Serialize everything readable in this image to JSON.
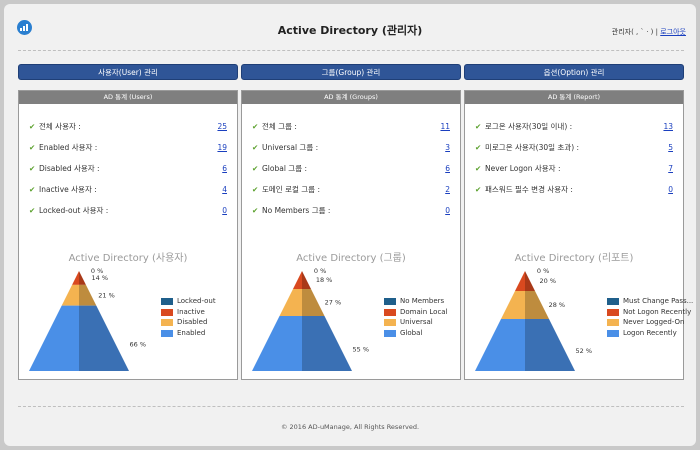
{
  "header": {
    "title": "Active Directory (관리자)",
    "user_label": "관리자(",
    "user_name": " , ` · )",
    "separator": " | ",
    "logout_label": "로그아웃"
  },
  "columns": [
    {
      "button_label": "사용자(User) 관리",
      "panel_title": "AD 통계 (Users)",
      "stats": [
        {
          "label": "전체 사용자 :",
          "value": "25"
        },
        {
          "label": "Enabled 사용자 :",
          "value": "19"
        },
        {
          "label": "Disabled 사용자 :",
          "value": "6"
        },
        {
          "label": "Inactive 사용자 :",
          "value": "4"
        },
        {
          "label": "Locked-out 사용자 :",
          "value": "0"
        }
      ],
      "chart_title": "Active Directory (사용자)"
    },
    {
      "button_label": "그룹(Group) 관리",
      "panel_title": "AD 통계 (Groups)",
      "stats": [
        {
          "label": "전체 그룹 :",
          "value": "11"
        },
        {
          "label": "Universal 그룹 :",
          "value": "3"
        },
        {
          "label": "Global 그룹 :",
          "value": "6"
        },
        {
          "label": "도메인 로컬 그룹 :",
          "value": "2"
        },
        {
          "label": "No Members 그룹 :",
          "value": "0"
        }
      ],
      "chart_title": "Active Directory (그룹)"
    },
    {
      "button_label": "옵션(Option) 관리",
      "panel_title": "AD 통계 (Report)",
      "stats": [
        {
          "label": "로그온 사용자(30일 이내) :",
          "value": "13"
        },
        {
          "label": "미로그온 사용자(30일 초과) :",
          "value": "5"
        },
        {
          "label": "Never Logon 사용자 :",
          "value": "7"
        },
        {
          "label": "패스워드 필수 변경 사용자 :",
          "value": "0"
        }
      ],
      "chart_title": "Active Directory (리포트)"
    }
  ],
  "chart_data": [
    {
      "type": "pyramid",
      "title": "Active Directory (사용자)",
      "series": [
        {
          "name": "Locked-out",
          "value": 0,
          "label": "0 %",
          "color": "#1f5f8b"
        },
        {
          "name": "Inactive",
          "value": 14,
          "label": "14 %",
          "color": "#d9491f"
        },
        {
          "name": "Disabled",
          "value": 21,
          "label": "21 %",
          "color": "#f4b350"
        },
        {
          "name": "Enabled",
          "value": 66,
          "label": "66 %",
          "color": "#4a8fe7"
        }
      ]
    },
    {
      "type": "pyramid",
      "title": "Active Directory (그룹)",
      "series": [
        {
          "name": "No Members",
          "value": 0,
          "label": "0 %",
          "color": "#1f5f8b"
        },
        {
          "name": "Domain Local",
          "value": 18,
          "label": "18 %",
          "color": "#d9491f"
        },
        {
          "name": "Universal",
          "value": 27,
          "label": "27 %",
          "color": "#f4b350"
        },
        {
          "name": "Global",
          "value": 55,
          "label": "55 %",
          "color": "#4a8fe7"
        }
      ]
    },
    {
      "type": "pyramid",
      "title": "Active Directory (리포트)",
      "series": [
        {
          "name": "Must Change Pass...",
          "value": 0,
          "label": "0 %",
          "color": "#1f5f8b"
        },
        {
          "name": "Not Logon Recently",
          "value": 20,
          "label": "20 %",
          "color": "#d9491f"
        },
        {
          "name": "Never Logged-On",
          "value": 28,
          "label": "28 %",
          "color": "#f4b350"
        },
        {
          "name": "Logon Recently",
          "value": 52,
          "label": "52 %",
          "color": "#4a8fe7"
        }
      ]
    }
  ],
  "footer": {
    "copyright": "© 2016 AD-uManage, All Rights Reserved."
  }
}
